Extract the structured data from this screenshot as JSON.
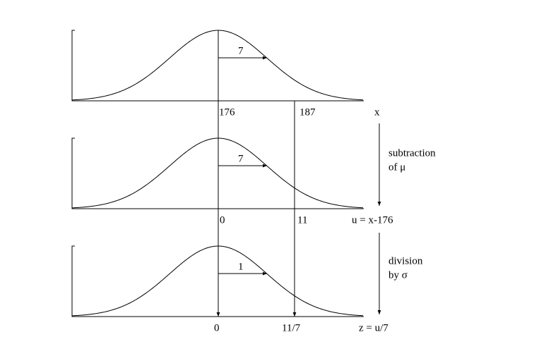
{
  "panels": [
    {
      "arrow_label": "7",
      "tick_labels": [
        "176",
        "187"
      ],
      "axis_label": "x"
    },
    {
      "arrow_label": "7",
      "tick_labels": [
        "0",
        "11"
      ],
      "axis_label": "u = x-176"
    },
    {
      "arrow_label": "1",
      "tick_labels": [
        "0",
        "11/7"
      ],
      "axis_label": "z = u/7"
    }
  ],
  "transitions": [
    {
      "lines": [
        "subtraction",
        "of μ"
      ]
    },
    {
      "lines": [
        "division",
        "by σ"
      ]
    }
  ]
}
